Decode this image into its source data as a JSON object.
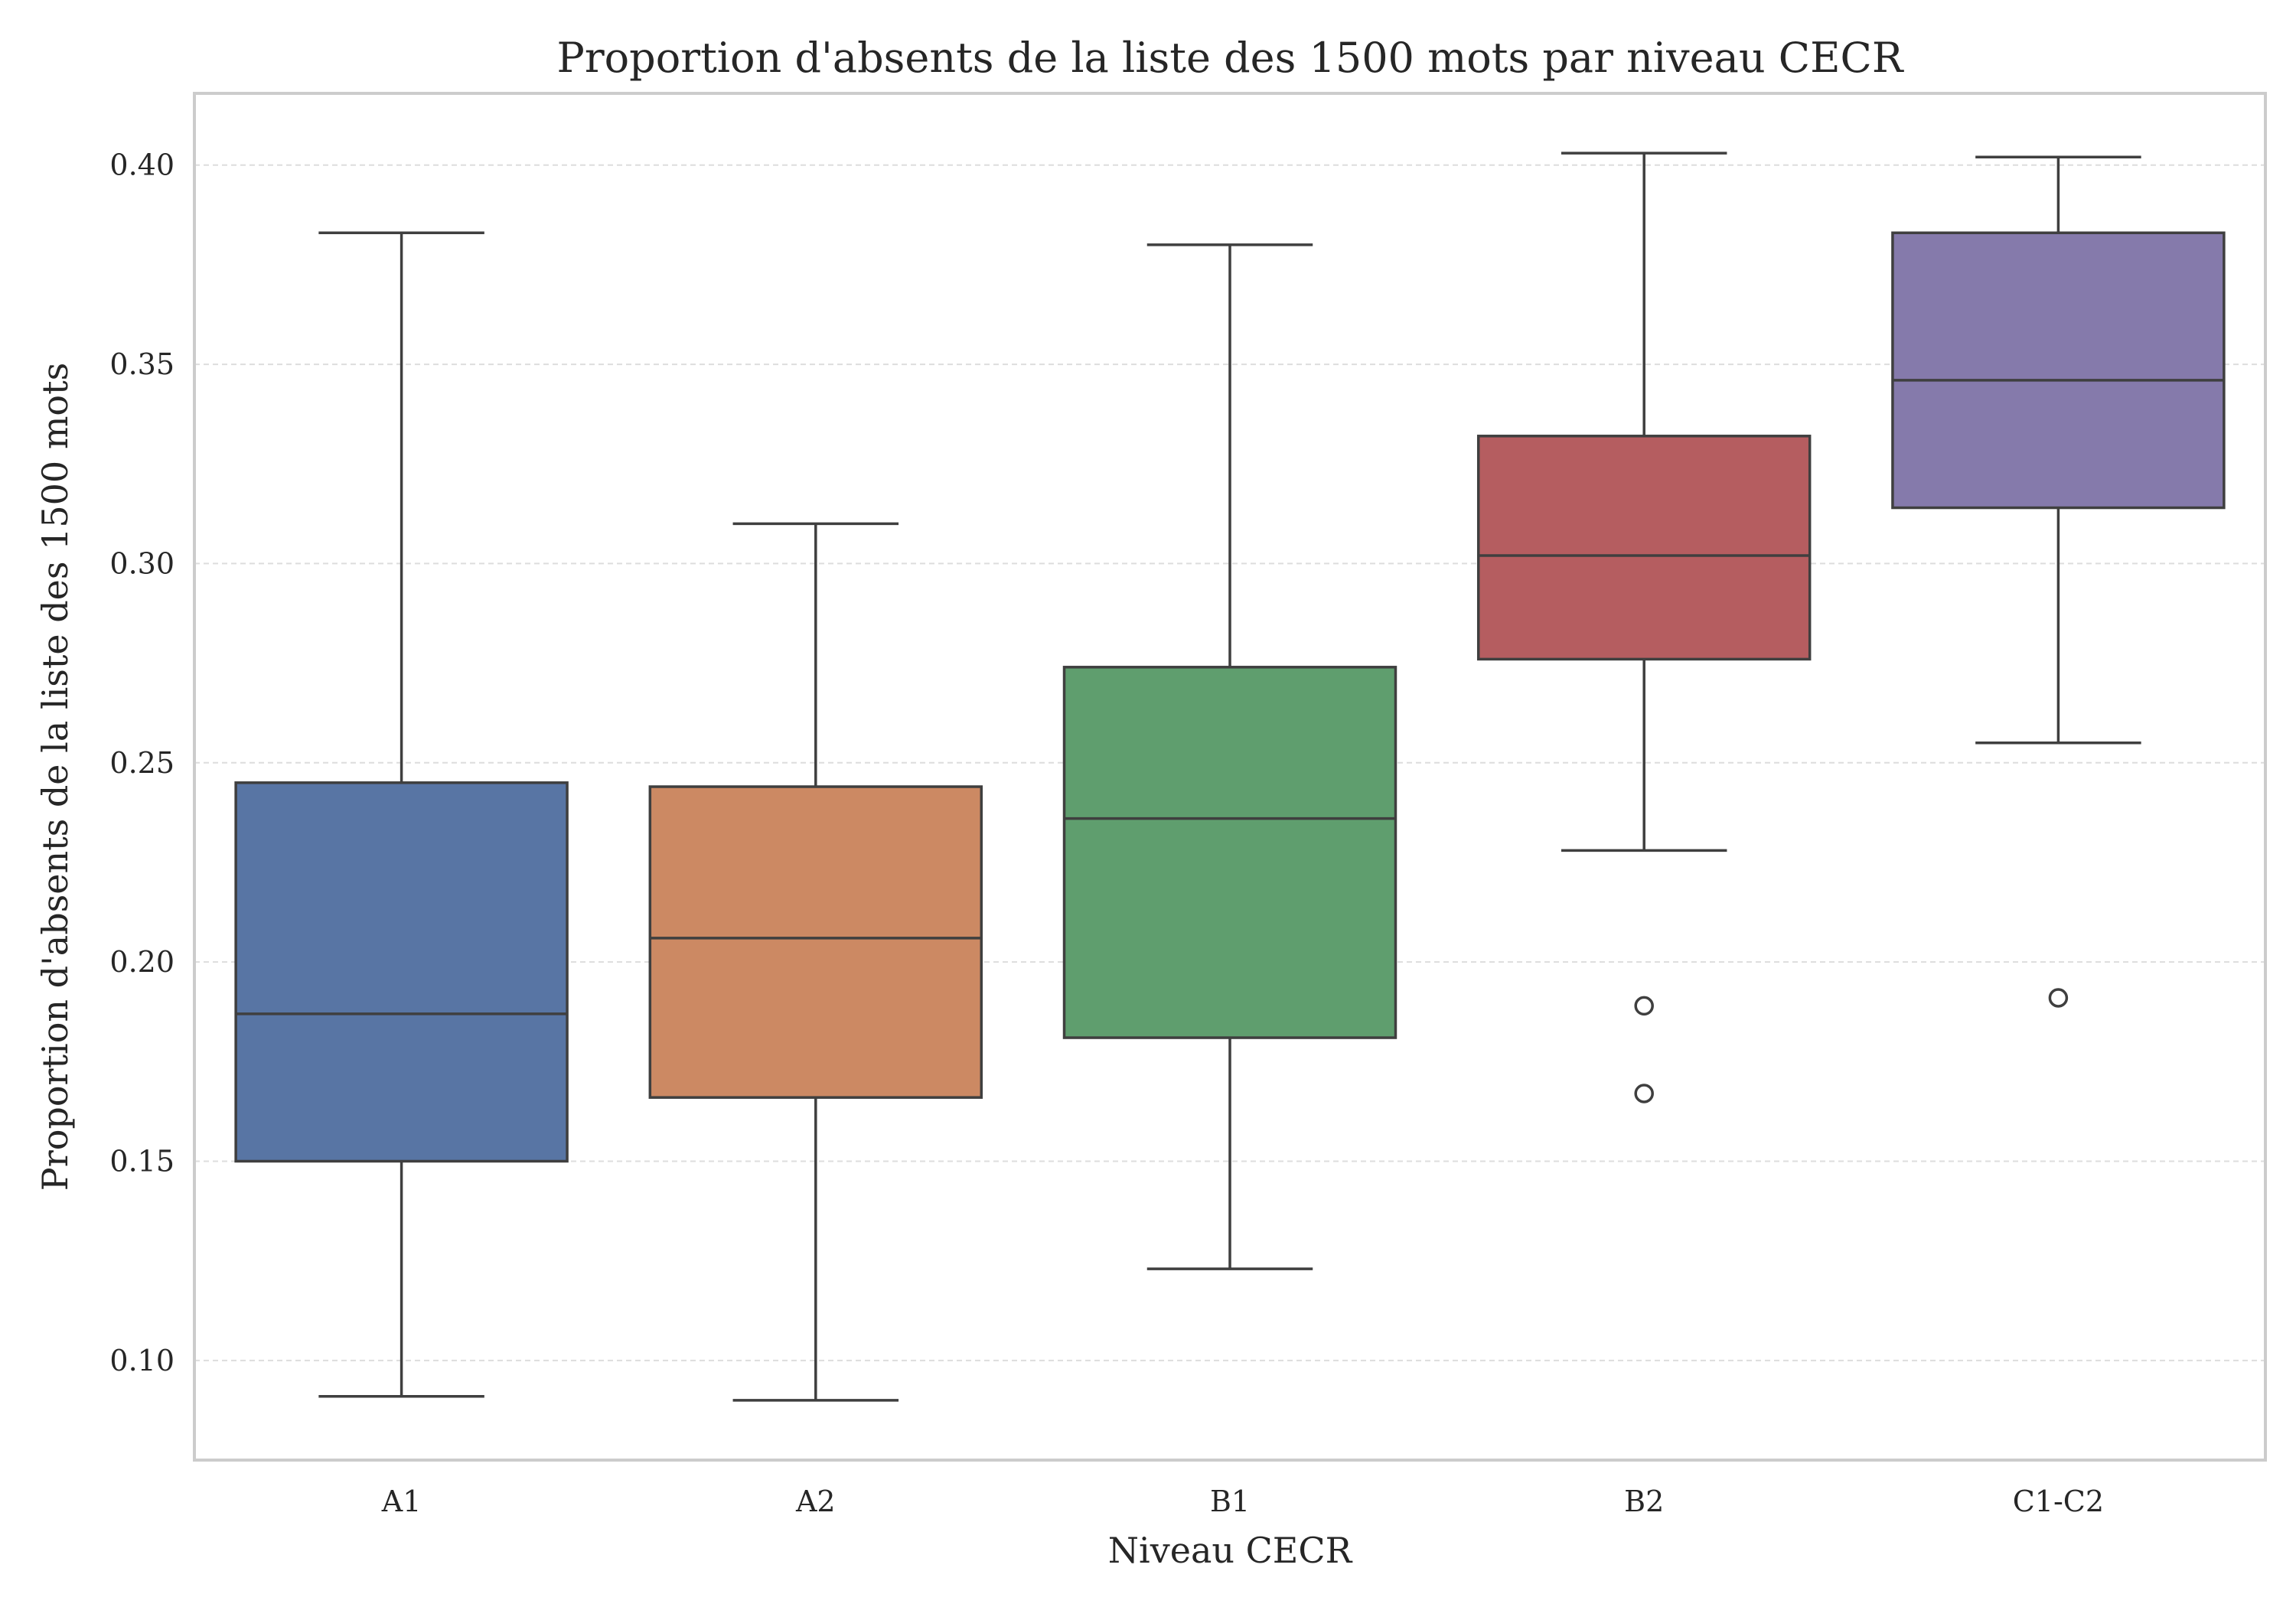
{
  "chart_data": {
    "type": "box",
    "title": "Proportion d'absents de la liste des 1500 mots par niveau CECR",
    "xlabel": "Niveau CECR",
    "ylabel": "Proportion d'absents de la liste des 1500 mots",
    "ylim": [
      0.075,
      0.418
    ],
    "yticks": [
      "0.10",
      "0.15",
      "0.20",
      "0.25",
      "0.30",
      "0.35",
      "0.40"
    ],
    "grid": "horizontal dashed",
    "categories": [
      "A1",
      "A2",
      "B1",
      "B2",
      "C1-C2"
    ],
    "colors": [
      "#5875a4",
      "#cc8963",
      "#5f9e6e",
      "#b55d60",
      "#857aab"
    ],
    "boxes": [
      {
        "category": "A1",
        "whisker_low": 0.091,
        "q1": 0.15,
        "median": 0.187,
        "q3": 0.245,
        "whisker_high": 0.383,
        "outliers": []
      },
      {
        "category": "A2",
        "whisker_low": 0.09,
        "q1": 0.166,
        "median": 0.206,
        "q3": 0.244,
        "whisker_high": 0.31,
        "outliers": []
      },
      {
        "category": "B1",
        "whisker_low": 0.123,
        "q1": 0.181,
        "median": 0.236,
        "q3": 0.274,
        "whisker_high": 0.38,
        "outliers": []
      },
      {
        "category": "B2",
        "whisker_low": 0.228,
        "q1": 0.276,
        "median": 0.302,
        "q3": 0.332,
        "whisker_high": 0.403,
        "outliers": [
          0.189,
          0.167
        ]
      },
      {
        "category": "C1-C2",
        "whisker_low": 0.255,
        "q1": 0.314,
        "median": 0.346,
        "q3": 0.383,
        "whisker_high": 0.402,
        "outliers": [
          0.191
        ]
      }
    ]
  }
}
